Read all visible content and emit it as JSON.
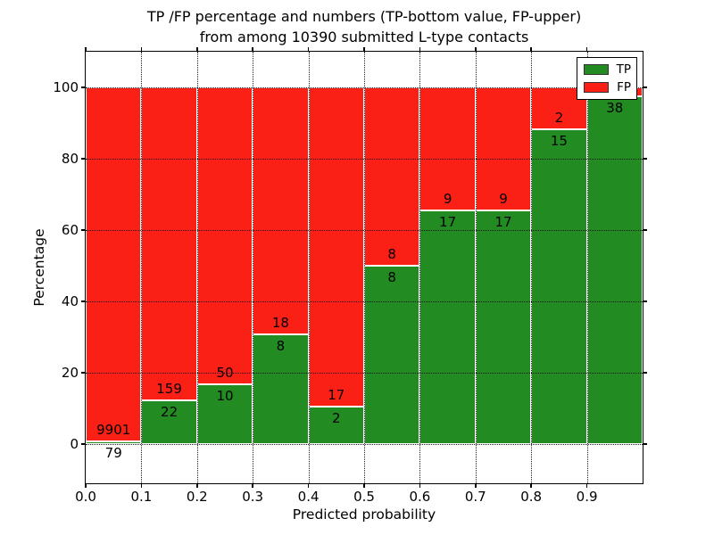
{
  "figure": {
    "title_line1": "TP /FP percentage and numbers (TP-bottom value, FP-upper)",
    "title_line2": "from among 10390 submitted L-type contacts"
  },
  "chart_data": {
    "type": "bar",
    "subtype": "stacked-percentage-histogram",
    "title": "TP /FP percentage and numbers (TP-bottom value, FP-upper)\nfrom among 10390 submitted L-type contacts",
    "xlabel": "Predicted probability",
    "ylabel": "Percentage",
    "total_shown_in_title": 10390,
    "xlim": [
      0.0,
      1.0
    ],
    "ylim": [
      -11,
      110
    ],
    "bin_width": 0.1,
    "x_tick_labels": [
      "0.0",
      "0.1",
      "0.2",
      "0.3",
      "0.4",
      "0.5",
      "0.6",
      "0.7",
      "0.8",
      "0.9"
    ],
    "y_tick_values": [
      0,
      20,
      40,
      60,
      80,
      100
    ],
    "grid": "dotted-both-axes",
    "categories": [
      "0.0-0.1",
      "0.1-0.2",
      "0.2-0.3",
      "0.3-0.4",
      "0.4-0.5",
      "0.5-0.6",
      "0.6-0.7",
      "0.7-0.8",
      "0.8-0.9",
      "0.9-1.0"
    ],
    "series": [
      {
        "name": "TP",
        "color": "#228b22",
        "counts": [
          79,
          22,
          10,
          8,
          2,
          8,
          17,
          17,
          15,
          38
        ]
      },
      {
        "name": "FP",
        "color": "#fb2016",
        "counts": [
          9901,
          159,
          50,
          18,
          17,
          8,
          9,
          9,
          2,
          1
        ]
      }
    ],
    "tp_percent_of_bin": [
      0.79,
      12.15,
      16.67,
      30.77,
      10.53,
      50.0,
      65.38,
      65.38,
      88.24,
      97.44
    ],
    "bar_value_labels": {
      "tp": [
        "79",
        "22",
        "10",
        "8",
        "2",
        "8",
        "17",
        "17",
        "15",
        "38"
      ],
      "fp": [
        "9901",
        "159",
        "50",
        "18",
        "17",
        "8",
        "9",
        "9",
        "2",
        ""
      ]
    },
    "legend": {
      "position": "upper-right",
      "entries": [
        {
          "label": "TP",
          "color": "#228b22"
        },
        {
          "label": "FP",
          "color": "#fb2016"
        }
      ]
    },
    "bar_edge_color": "#ffffff",
    "background_color": "#ffffff"
  }
}
